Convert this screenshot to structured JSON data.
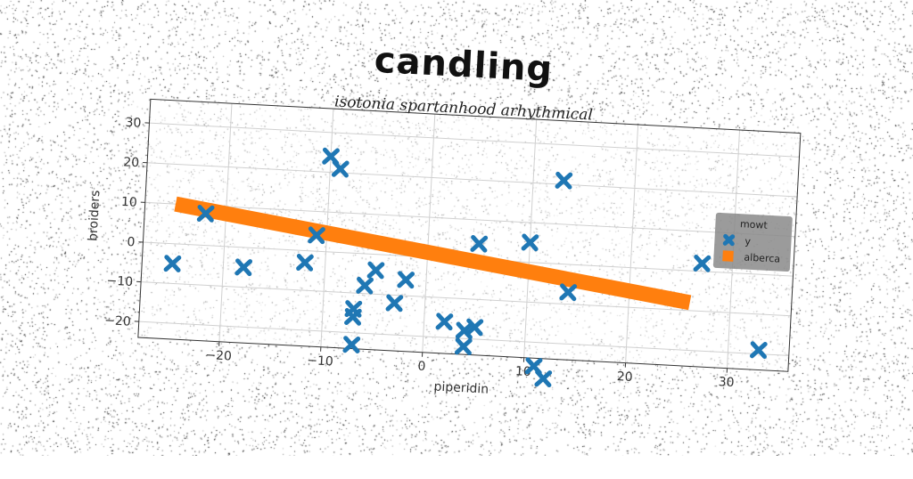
{
  "title": "candling",
  "subtitle": "isotonia spartanhood arhythmical",
  "colors": {
    "series_y": "#1f77b4",
    "series_line": "#ff7f0e",
    "grid": "#d0d0d0"
  },
  "chart_data": {
    "type": "scatter",
    "xlabel": "piperidin",
    "ylabel": "broiders",
    "xlim": [
      -28,
      36
    ],
    "ylim": [
      -24,
      36
    ],
    "xticks": [
      -20,
      -10,
      0,
      10,
      20,
      30
    ],
    "yticks": [
      -20,
      -10,
      0,
      10,
      20,
      30
    ],
    "grid": true,
    "legend": {
      "title": "mowt",
      "placement": "right"
    },
    "series": [
      {
        "name": "y",
        "type": "scatter",
        "marker": "X",
        "points": [
          [
            -25,
            -5
          ],
          [
            -22,
            8
          ],
          [
            -18,
            -5
          ],
          [
            -12,
            -3
          ],
          [
            -11,
            4
          ],
          [
            -10,
            24
          ],
          [
            -9,
            21
          ],
          [
            -7,
            -14
          ],
          [
            -7,
            -16
          ],
          [
            -7,
            -23
          ],
          [
            -6,
            -8
          ],
          [
            -5,
            -4
          ],
          [
            -2,
            -6
          ],
          [
            -3,
            -12
          ],
          [
            2,
            -16
          ],
          [
            4,
            -18
          ],
          [
            4,
            -22
          ],
          [
            5,
            4
          ],
          [
            5,
            -17
          ],
          [
            10,
            5
          ],
          [
            11,
            -26
          ],
          [
            12,
            -29
          ],
          [
            13,
            21
          ],
          [
            14,
            -7
          ],
          [
            27,
            2
          ],
          [
            33,
            -19
          ]
        ]
      },
      {
        "name": "alberca",
        "type": "line",
        "points": [
          [
            -25,
            10
          ],
          [
            26,
            -8
          ]
        ]
      }
    ]
  }
}
